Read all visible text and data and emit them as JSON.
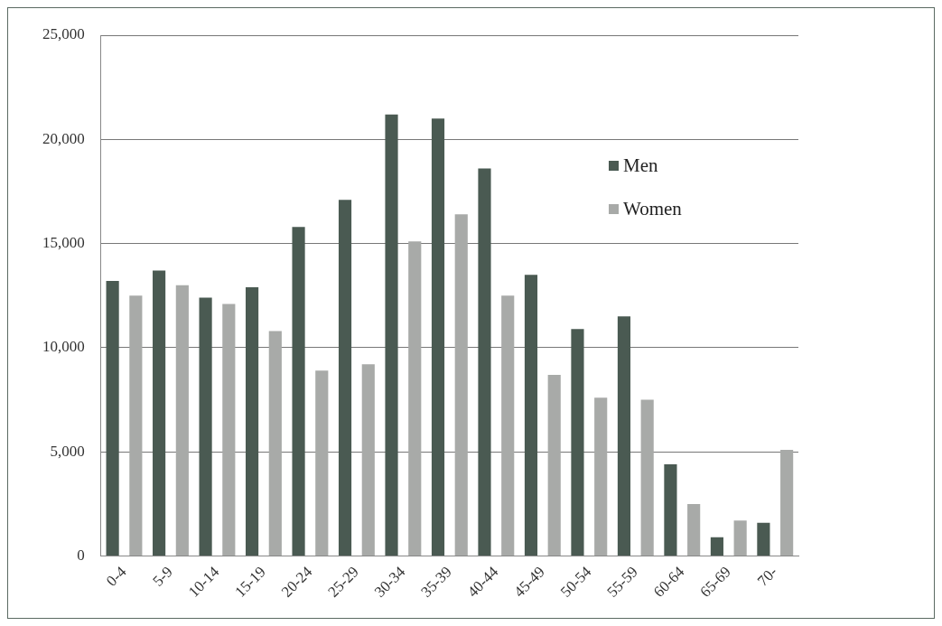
{
  "chart_data": {
    "type": "bar",
    "categories": [
      "0-4",
      "5-9",
      "10-14",
      "15-19",
      "20-24",
      "25-29",
      "30-34",
      "35-39",
      "40-44",
      "45-49",
      "50-54",
      "55-59",
      "60-64",
      "65-69",
      "70-"
    ],
    "series": [
      {
        "name": "Men",
        "color": "#4a5a52",
        "values": [
          13200,
          13700,
          12400,
          12900,
          15800,
          17100,
          21200,
          21000,
          18600,
          13500,
          10900,
          11500,
          4400,
          900,
          1600
        ]
      },
      {
        "name": "Women",
        "color": "#a8aaa8",
        "values": [
          12500,
          13000,
          12100,
          10800,
          8900,
          9200,
          15100,
          16400,
          12500,
          8700,
          7600,
          7500,
          2500,
          1700,
          5100
        ]
      }
    ],
    "ylim": [
      0,
      25000
    ],
    "yticks": [
      {
        "value": 0,
        "label": "0"
      },
      {
        "value": 5000,
        "label": "5,000"
      },
      {
        "value": 10000,
        "label": "10,000"
      },
      {
        "value": 15000,
        "label": "15,000"
      },
      {
        "value": 20000,
        "label": "20,000"
      },
      {
        "value": 25000,
        "label": "25,000"
      }
    ],
    "grid": "y",
    "legend": "top right"
  }
}
